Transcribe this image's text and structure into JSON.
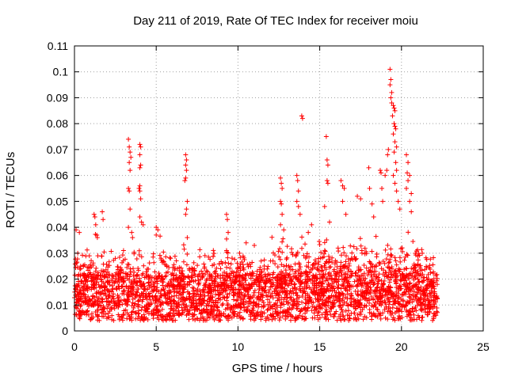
{
  "chart_data": {
    "type": "scatter",
    "title": "Day 211 of 2019, Rate Of TEC Index for receiver moiu",
    "xlabel": "GPS time / hours",
    "ylabel": "ROTI / TECUs",
    "xlim": [
      0,
      25
    ],
    "ylim": [
      0,
      0.11
    ],
    "x_ticks": [
      0,
      5,
      10,
      15,
      20,
      25
    ],
    "x_tick_labels": [
      "0",
      "5",
      "10",
      "15",
      "20",
      "25"
    ],
    "y_ticks": [
      0,
      0.01,
      0.02,
      0.03,
      0.04,
      0.05,
      0.06,
      0.07,
      0.08,
      0.09,
      0.1,
      0.11
    ],
    "y_tick_labels": [
      "0",
      "0.01",
      "0.02",
      "0.03",
      "0.04",
      "0.05",
      "0.06",
      "0.07",
      "0.08",
      "0.09",
      "0.1",
      "0.11"
    ],
    "grid": true,
    "marker": "plus",
    "marker_color": "#ff0000",
    "series": [
      {
        "points": [
          [
            0.1,
            0.039
          ],
          [
            0.3,
            0.038
          ],
          [
            0.2,
            0.03
          ],
          [
            1.2,
            0.045
          ],
          [
            1.25,
            0.044
          ],
          [
            1.3,
            0.041
          ],
          [
            1.4,
            0.036
          ],
          [
            1.7,
            0.046
          ],
          [
            1.75,
            0.043
          ],
          [
            2.5,
            0.028
          ],
          [
            3.0,
            0.031
          ],
          [
            3.3,
            0.074
          ],
          [
            3.35,
            0.071
          ],
          [
            3.4,
            0.069
          ],
          [
            3.45,
            0.067
          ],
          [
            3.35,
            0.065
          ],
          [
            3.4,
            0.062
          ],
          [
            3.3,
            0.055
          ],
          [
            3.35,
            0.054
          ],
          [
            3.4,
            0.047
          ],
          [
            3.3,
            0.04
          ],
          [
            3.5,
            0.038
          ],
          [
            3.55,
            0.036
          ],
          [
            4.0,
            0.072
          ],
          [
            4.05,
            0.071
          ],
          [
            4.0,
            0.068
          ],
          [
            4.05,
            0.064
          ],
          [
            4.0,
            0.063
          ],
          [
            4.0,
            0.056
          ],
          [
            3.95,
            0.055
          ],
          [
            4.0,
            0.054
          ],
          [
            4.05,
            0.051
          ],
          [
            4.0,
            0.044
          ],
          [
            4.1,
            0.042
          ],
          [
            4.2,
            0.041
          ],
          [
            5.0,
            0.04
          ],
          [
            5.1,
            0.039
          ],
          [
            5.0,
            0.037
          ],
          [
            6.8,
            0.068
          ],
          [
            6.85,
            0.066
          ],
          [
            6.8,
            0.064
          ],
          [
            6.85,
            0.062
          ],
          [
            6.8,
            0.059
          ],
          [
            6.75,
            0.058
          ],
          [
            6.9,
            0.05
          ],
          [
            6.85,
            0.047
          ],
          [
            6.8,
            0.045
          ],
          [
            6.9,
            0.036
          ],
          [
            9.3,
            0.045
          ],
          [
            9.35,
            0.043
          ],
          [
            9.4,
            0.038
          ],
          [
            9.3,
            0.031
          ],
          [
            10.1,
            0.03
          ],
          [
            10.5,
            0.034
          ],
          [
            11.0,
            0.033
          ],
          [
            12.6,
            0.059
          ],
          [
            12.65,
            0.057
          ],
          [
            12.7,
            0.055
          ],
          [
            12.6,
            0.05
          ],
          [
            12.65,
            0.049
          ],
          [
            12.7,
            0.045
          ],
          [
            12.6,
            0.041
          ],
          [
            12.8,
            0.039
          ],
          [
            13.6,
            0.06
          ],
          [
            13.65,
            0.058
          ],
          [
            13.7,
            0.054
          ],
          [
            13.6,
            0.05
          ],
          [
            13.7,
            0.048
          ],
          [
            13.9,
            0.083
          ],
          [
            13.95,
            0.082
          ],
          [
            13.8,
            0.045
          ],
          [
            14.3,
            0.038
          ],
          [
            14.5,
            0.041
          ],
          [
            15.4,
            0.075
          ],
          [
            15.45,
            0.066
          ],
          [
            15.5,
            0.064
          ],
          [
            15.45,
            0.058
          ],
          [
            15.5,
            0.057
          ],
          [
            15.3,
            0.048
          ],
          [
            15.6,
            0.042
          ],
          [
            16.3,
            0.058
          ],
          [
            16.4,
            0.056
          ],
          [
            16.5,
            0.055
          ],
          [
            16.4,
            0.05
          ],
          [
            16.6,
            0.045
          ],
          [
            17.3,
            0.052
          ],
          [
            17.5,
            0.051
          ],
          [
            18.0,
            0.063
          ],
          [
            18.05,
            0.055
          ],
          [
            18.2,
            0.049
          ],
          [
            18.3,
            0.044
          ],
          [
            18.7,
            0.062
          ],
          [
            18.75,
            0.061
          ],
          [
            18.8,
            0.055
          ],
          [
            18.85,
            0.05
          ],
          [
            19.0,
            0.06
          ],
          [
            19.1,
            0.062
          ],
          [
            19.15,
            0.068
          ],
          [
            19.2,
            0.07
          ],
          [
            19.3,
            0.101
          ],
          [
            19.35,
            0.097
          ],
          [
            19.3,
            0.095
          ],
          [
            19.4,
            0.092
          ],
          [
            19.35,
            0.09
          ],
          [
            19.4,
            0.088
          ],
          [
            19.5,
            0.087
          ],
          [
            19.55,
            0.086
          ],
          [
            19.6,
            0.085
          ],
          [
            19.45,
            0.083
          ],
          [
            19.55,
            0.08
          ],
          [
            19.6,
            0.079
          ],
          [
            19.65,
            0.078
          ],
          [
            19.5,
            0.076
          ],
          [
            19.6,
            0.073
          ],
          [
            19.7,
            0.071
          ],
          [
            19.55,
            0.069
          ],
          [
            19.65,
            0.065
          ],
          [
            19.7,
            0.062
          ],
          [
            19.5,
            0.06
          ],
          [
            19.6,
            0.057
          ],
          [
            19.7,
            0.054
          ],
          [
            19.8,
            0.05
          ],
          [
            19.9,
            0.047
          ],
          [
            20.3,
            0.068
          ],
          [
            20.4,
            0.065
          ],
          [
            20.35,
            0.061
          ],
          [
            20.5,
            0.06
          ],
          [
            20.4,
            0.058
          ],
          [
            20.3,
            0.055
          ],
          [
            20.6,
            0.053
          ],
          [
            20.5,
            0.05
          ],
          [
            20.6,
            0.046
          ]
        ]
      }
    ]
  }
}
